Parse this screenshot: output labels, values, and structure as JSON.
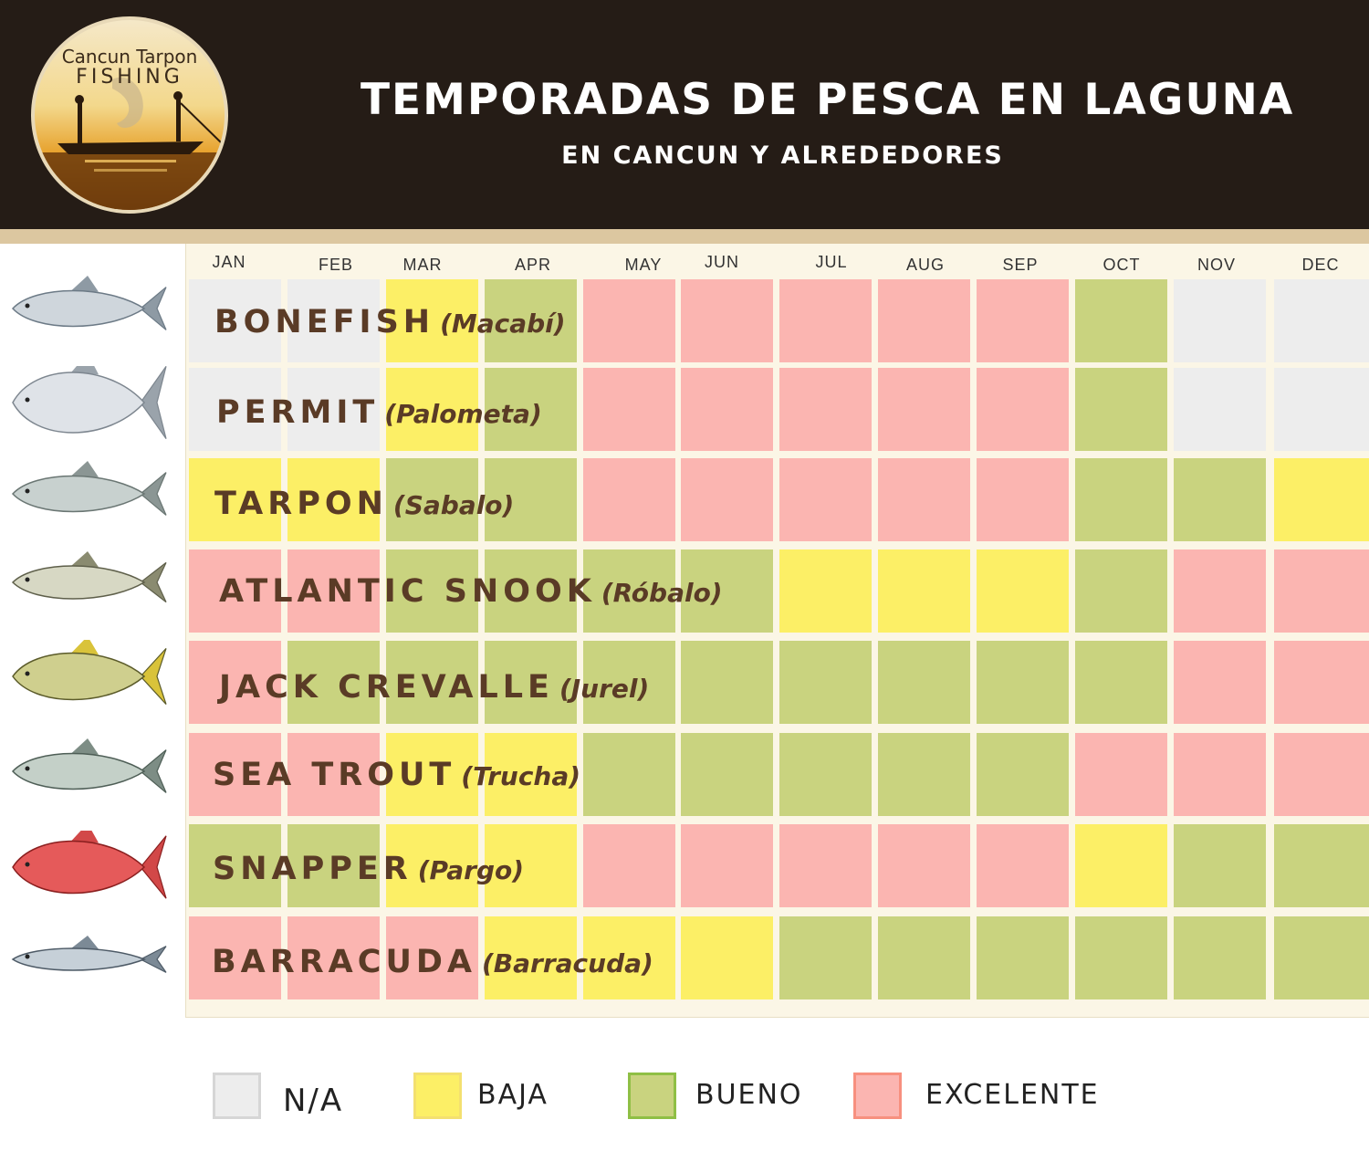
{
  "header": {
    "title": "TEMPORADAS DE PESCA EN LAGUNA",
    "subtitle": "EN CANCUN Y ALREDEDORES",
    "bg_color": "#251c16"
  },
  "logo": {
    "text_top": "Cancun Tarpon",
    "text_bottom": "FISHING",
    "icon": "tarpon-fishing-boat-logo"
  },
  "months": [
    "JAN",
    "FEB",
    "MAR",
    "APR",
    "MAY",
    "JUN",
    "JUL",
    "AUG",
    "SEP",
    "OCT",
    "NOV",
    "DEC"
  ],
  "ratings": {
    "na": {
      "label": "N/A",
      "color": "#ededed",
      "border": "#d6d6d6"
    },
    "baja": {
      "label": "BAJA",
      "color": "#fcef66",
      "border": "#f3e070"
    },
    "bueno": {
      "label": "BUENO",
      "color": "#c9d37f",
      "border": "#8fbf45"
    },
    "exc": {
      "label": "EXCELENTE",
      "color": "#fbb5b1",
      "border": "#f7907f"
    }
  },
  "fish": [
    {
      "name": "BONEFISH",
      "alt": "(Macabí)",
      "icon": "bonefish-icon",
      "seasons": [
        "na",
        "na",
        "baja",
        "bueno",
        "exc",
        "exc",
        "exc",
        "exc",
        "exc",
        "bueno",
        "na",
        "na"
      ]
    },
    {
      "name": "PERMIT",
      "alt": "(Palometa)",
      "icon": "permit-icon",
      "seasons": [
        "na",
        "na",
        "baja",
        "bueno",
        "exc",
        "exc",
        "exc",
        "exc",
        "exc",
        "bueno",
        "na",
        "na"
      ]
    },
    {
      "name": "TARPON",
      "alt": "(Sabalo)",
      "icon": "tarpon-icon",
      "seasons": [
        "baja",
        "baja",
        "bueno",
        "bueno",
        "exc",
        "exc",
        "exc",
        "exc",
        "exc",
        "bueno",
        "bueno",
        "baja"
      ]
    },
    {
      "name": "ATLANTIC SNOOK",
      "alt": "(Róbalo)",
      "icon": "snook-icon",
      "seasons": [
        "exc",
        "exc",
        "bueno",
        "bueno",
        "bueno",
        "bueno",
        "baja",
        "baja",
        "baja",
        "bueno",
        "exc",
        "exc"
      ]
    },
    {
      "name": "JACK CREVALLE",
      "alt": "(Jurel)",
      "icon": "jack-crevalle-icon",
      "seasons": [
        "exc",
        "bueno",
        "bueno",
        "bueno",
        "bueno",
        "bueno",
        "bueno",
        "bueno",
        "bueno",
        "bueno",
        "exc",
        "exc"
      ]
    },
    {
      "name": "SEA TROUT",
      "alt": "(Trucha)",
      "icon": "sea-trout-icon",
      "seasons": [
        "exc",
        "exc",
        "baja",
        "baja",
        "bueno",
        "bueno",
        "bueno",
        "bueno",
        "bueno",
        "exc",
        "exc",
        "exc"
      ]
    },
    {
      "name": "SNAPPER",
      "alt": "(Pargo)",
      "icon": "snapper-icon",
      "seasons": [
        "bueno",
        "bueno",
        "baja",
        "baja",
        "exc",
        "exc",
        "exc",
        "exc",
        "exc",
        "baja",
        "bueno",
        "bueno"
      ]
    },
    {
      "name": "BARRACUDA",
      "alt": "(Barracuda)",
      "icon": "barracuda-icon",
      "seasons": [
        "exc",
        "exc",
        "exc",
        "baja",
        "baja",
        "baja",
        "bueno",
        "bueno",
        "bueno",
        "bueno",
        "bueno",
        "bueno"
      ]
    }
  ],
  "legend": [
    "na",
    "baja",
    "bueno",
    "exc"
  ]
}
